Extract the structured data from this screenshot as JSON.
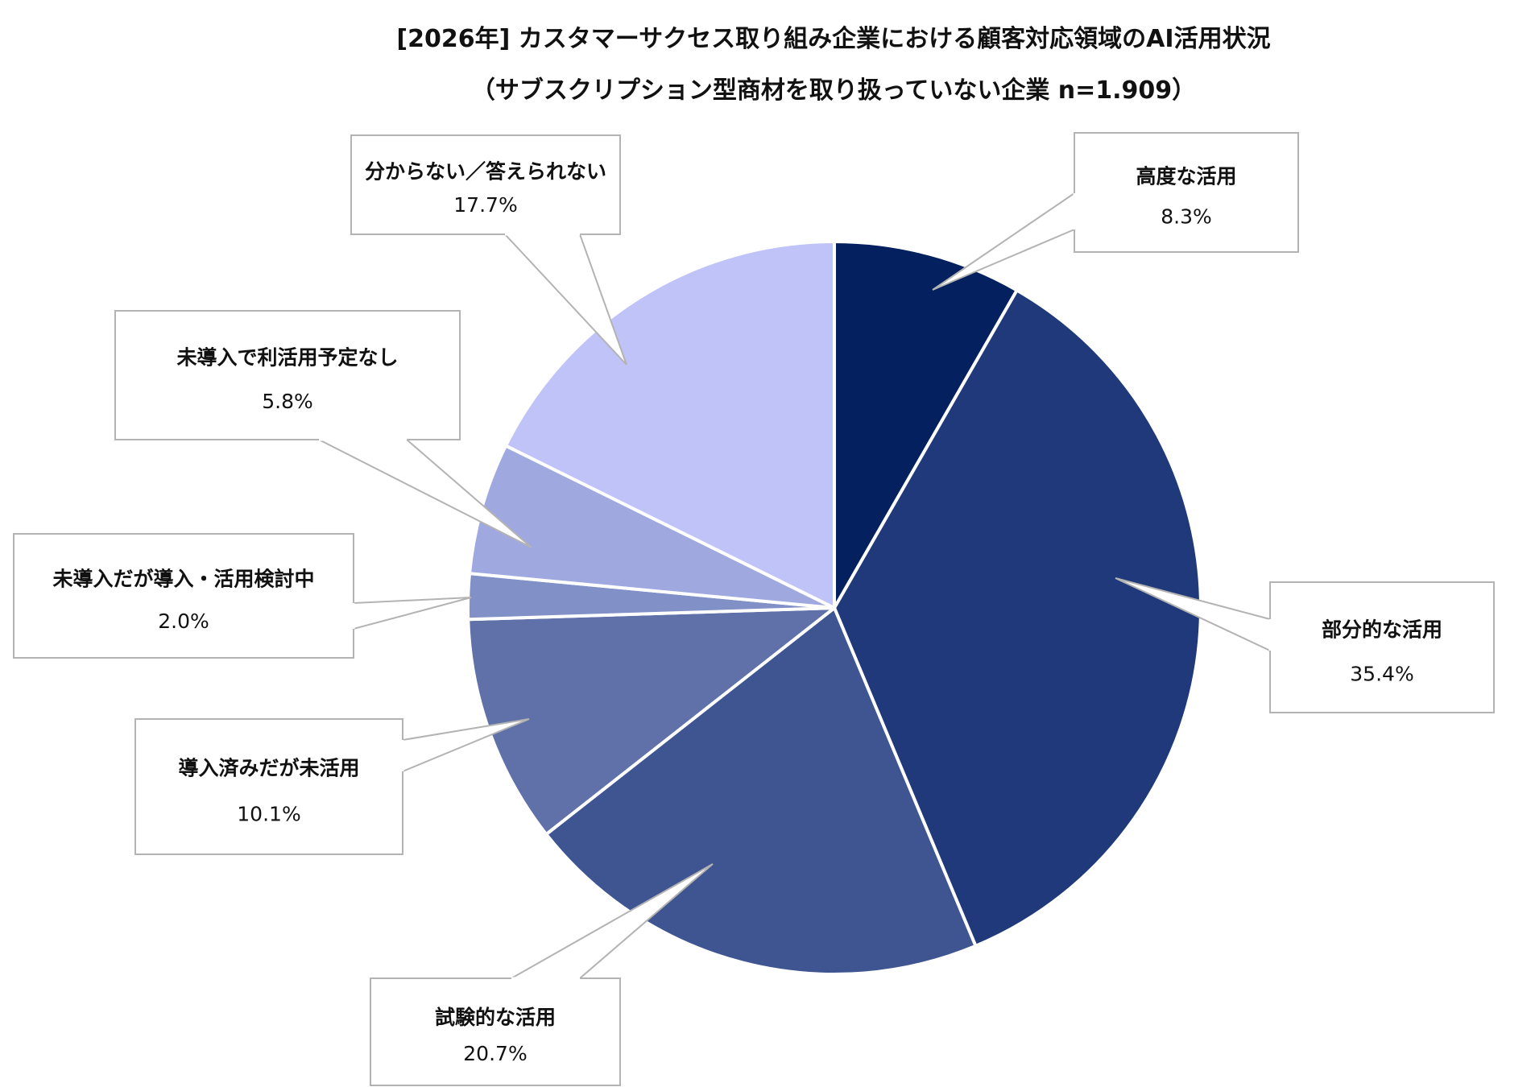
{
  "chart_data": {
    "type": "pie",
    "title": "[2026年] カスタマーサクセス取り組み企業における顧客対応領域のAI活用状況",
    "subtitle": "（サブスクリプション型商材を取り扱っていない企業  n=1.909）",
    "unit": "%",
    "start_angle_deg": 0,
    "direction": "clockwise",
    "slices": [
      {
        "label": "高度な活用",
        "value": 8.3,
        "value_label": "8.3%",
        "color": "#04205e"
      },
      {
        "label": "部分的な活用",
        "value": 35.4,
        "value_label": "35.4%",
        "color": "#20397a"
      },
      {
        "label": "試験的な活用",
        "value": 20.7,
        "value_label": "20.7%",
        "color": "#3f5591"
      },
      {
        "label": "導入済みだが未活用",
        "value": 10.1,
        "value_label": "10.1%",
        "color": "#6071aa"
      },
      {
        "label": "未導入だが導入・活用検討中",
        "value": 2.0,
        "value_label": "2.0%",
        "color": "#8290c8"
      },
      {
        "label": "未導入で利活用予定なし",
        "value": 5.8,
        "value_label": "5.8%",
        "color": "#a0a8e0"
      },
      {
        "label": "分からない／答えられない",
        "value": 17.7,
        "value_label": "17.7%",
        "color": "#bfc3f8"
      }
    ]
  }
}
